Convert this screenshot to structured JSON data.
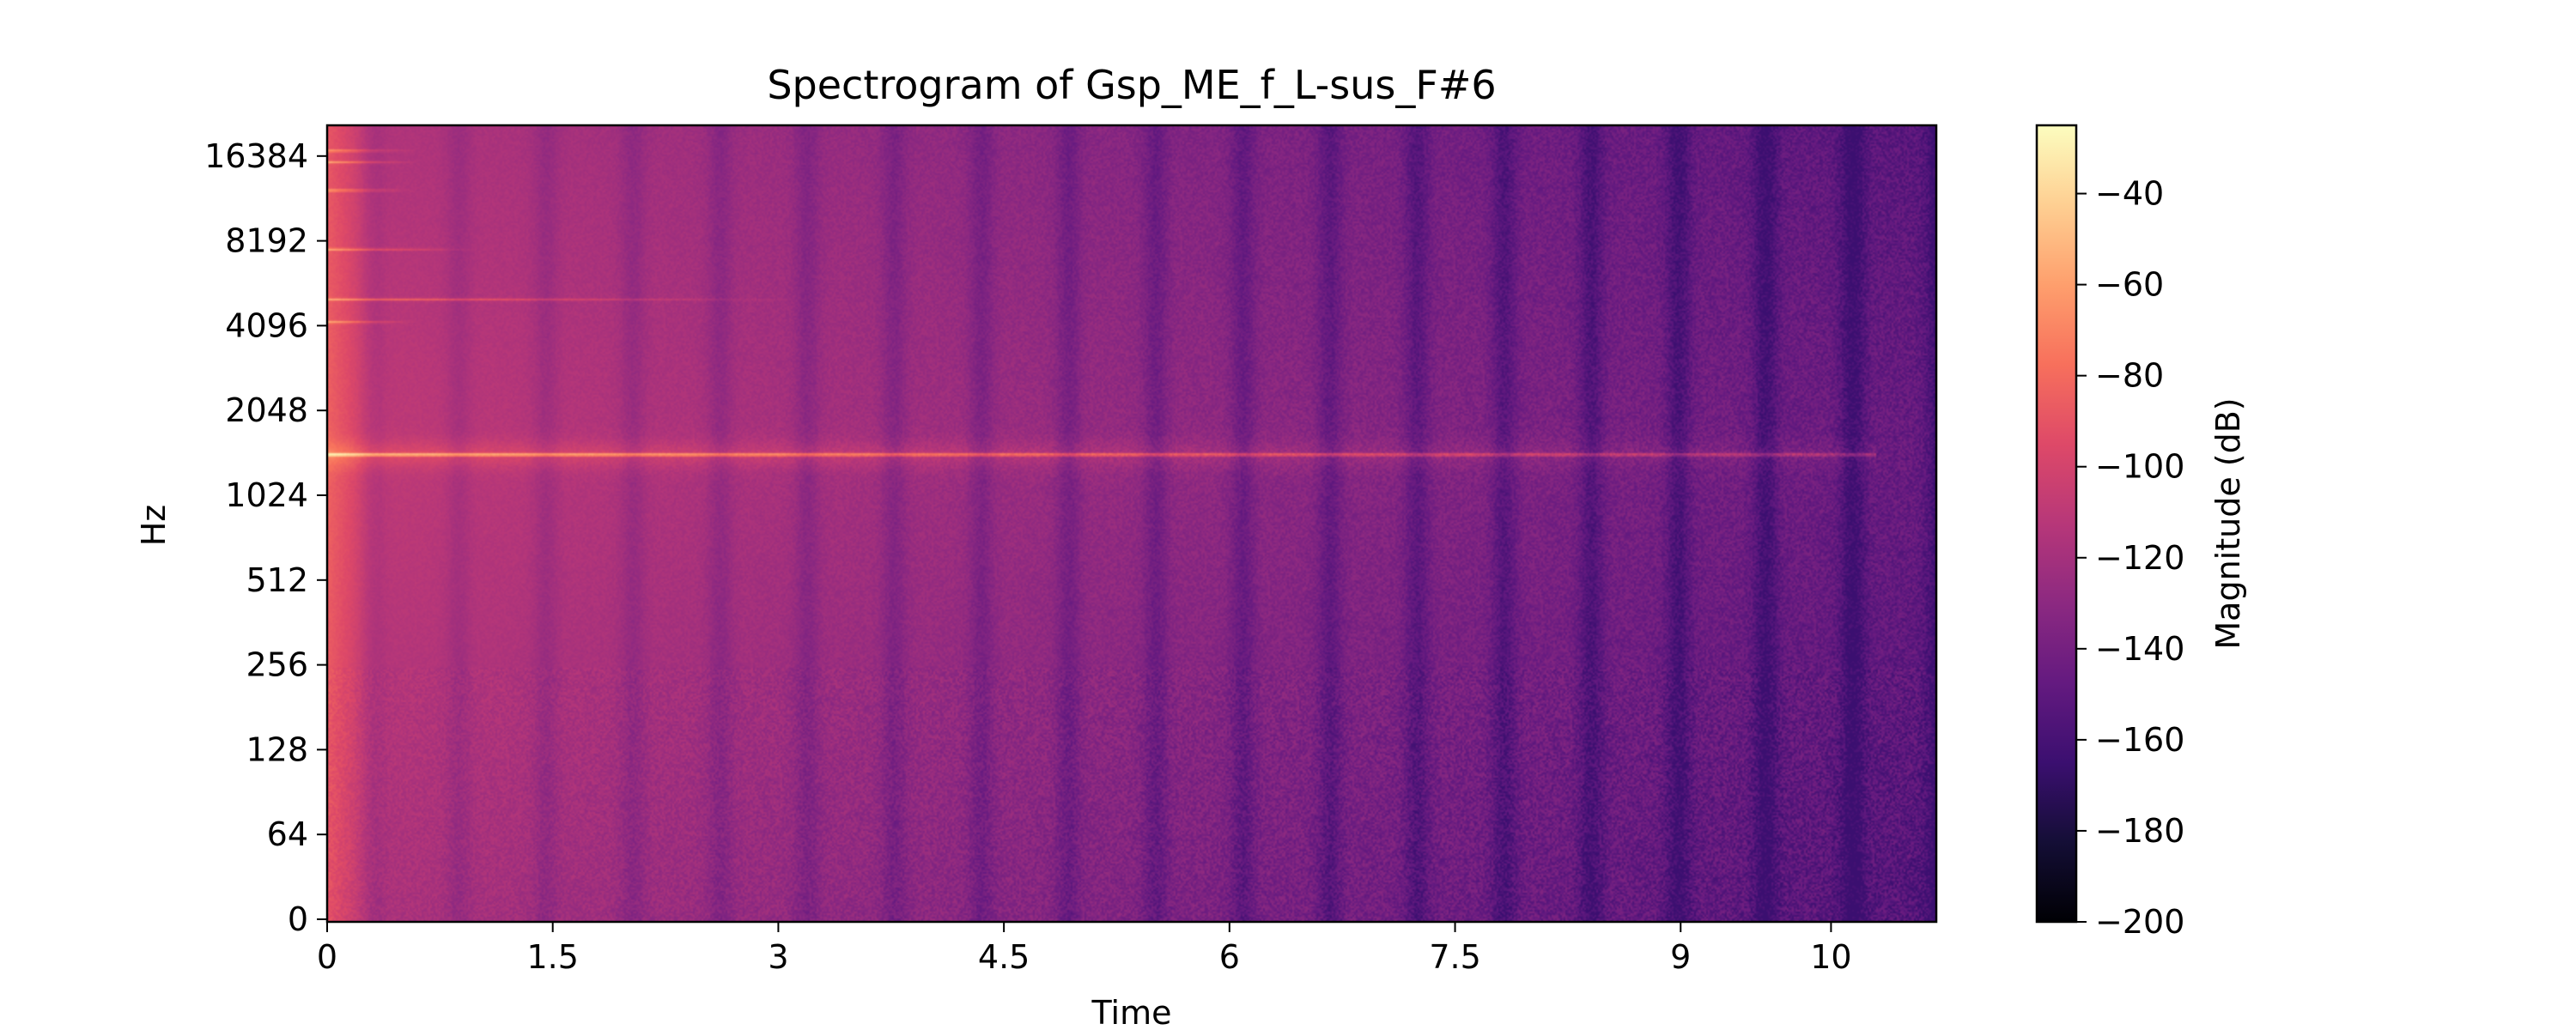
{
  "chart_data": {
    "type": "heatmap",
    "title": "Spectrogram of Gsp_ME_f_L-sus_F#6",
    "xlabel": "Time",
    "ylabel": "Hz",
    "xlim": [
      0,
      10.7
    ],
    "x_ticks": [
      0,
      1.5,
      3,
      4.5,
      6,
      7.5,
      9,
      10
    ],
    "x_tick_labels": [
      "0",
      "1.5",
      "3",
      "4.5",
      "6",
      "7.5",
      "9",
      "10"
    ],
    "y_scale": "log2 (symlog)",
    "y_tick_labels": [
      "0",
      "64",
      "128",
      "256",
      "512",
      "1024",
      "2048",
      "4096",
      "8192",
      "16384"
    ],
    "ylim_hz": [
      0,
      22050
    ],
    "colormap": "magma",
    "colorbar": {
      "label": "Magnitude (dB)",
      "range": [
        -200,
        -25
      ],
      "ticks": [
        -40,
        -60,
        -80,
        -100,
        -120,
        -140,
        -160,
        -180,
        -200
      ],
      "tick_labels": [
        "−40",
        "−60",
        "−80",
        "−100",
        "−120",
        "−140",
        "−160",
        "−180",
        "−200"
      ]
    },
    "features": {
      "fundamental_hz": 1480,
      "fundamental_sustain_s": 10.3,
      "upper_partials_hz": [
        4400,
        5300,
        8000,
        13000,
        16384,
        18000
      ],
      "amplitude_modulation_period_s": 0.58,
      "onset_s": 0.0,
      "peak_db": -30,
      "floor_db": -165
    }
  }
}
